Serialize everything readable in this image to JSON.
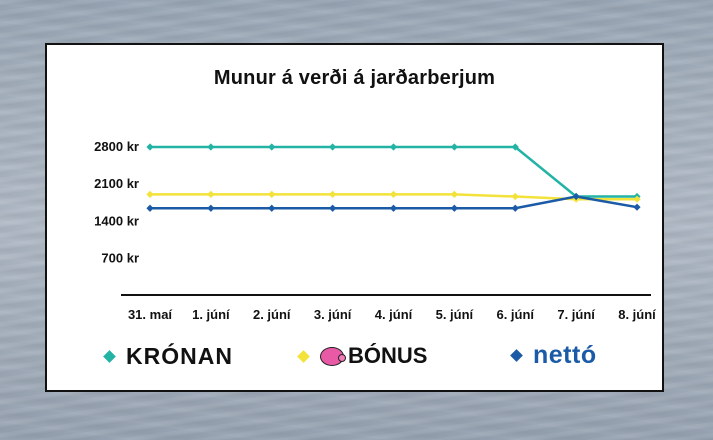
{
  "chart_data": {
    "type": "line",
    "title": "Munur á verði á jarðarberjum",
    "categories": [
      "31. maí",
      "1. júní",
      "2. júní",
      "3. júní",
      "4. júní",
      "5. júní",
      "6. júní",
      "7. júní",
      "8. júní"
    ],
    "y_ticks": [
      "2800 kr",
      "2100 kr",
      "1400 kr",
      "700 kr"
    ],
    "ylim": [
      0,
      3100
    ],
    "grid": false,
    "legend_position": "bottom",
    "series": [
      {
        "name": "KRÓNAN",
        "color": "#22b3a5",
        "values": [
          2780,
          2780,
          2780,
          2780,
          2780,
          2780,
          2780,
          1850,
          1850
        ]
      },
      {
        "name": "BÓNUS",
        "color": "#f3e23a",
        "values": [
          1890,
          1890,
          1890,
          1890,
          1890,
          1890,
          1850,
          1800,
          1800
        ]
      },
      {
        "name": "nettó",
        "color": "#1b5aa6",
        "values": [
          1630,
          1630,
          1630,
          1630,
          1630,
          1630,
          1630,
          1850,
          1650
        ]
      }
    ]
  },
  "legend": {
    "kronan": "KRÓNAN",
    "bonus": "BÓNUS",
    "netto": "nettó"
  }
}
